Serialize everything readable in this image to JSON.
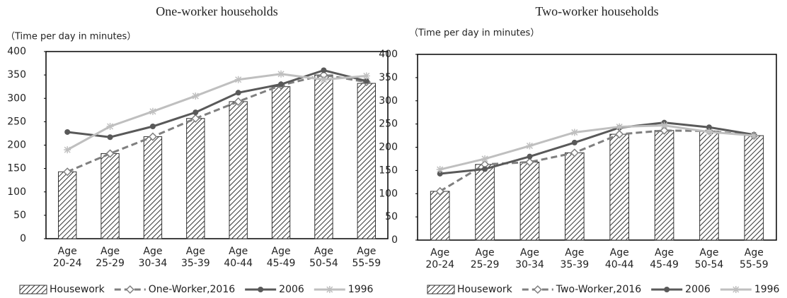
{
  "chart_data": [
    {
      "type": "bar_line",
      "title": "One-worker households",
      "y_label": "（Time per day in minutes）",
      "categories": [
        "Age\n20-24",
        "Age\n25-29",
        "Age\n30-34",
        "Age\n35-39",
        "Age\n40-44",
        "Age\n45-49",
        "Age\n50-54",
        "Age\n55-59"
      ],
      "ylim": [
        0,
        400
      ],
      "yticks": [
        0,
        50,
        100,
        150,
        200,
        250,
        300,
        350,
        400
      ],
      "series": [
        {
          "name": "Housework",
          "type": "bar",
          "color": "#333333",
          "values": [
            143,
            182,
            218,
            257,
            293,
            325,
            350,
            332
          ]
        },
        {
          "name": "One-Worker,2016",
          "type": "line",
          "style": "dashed",
          "marker": "diamond",
          "color": "#7f7f7f",
          "values": [
            143,
            182,
            218,
            257,
            293,
            328,
            350,
            335
          ]
        },
        {
          "name": "2006",
          "type": "line",
          "style": "solid",
          "marker": "circle",
          "color": "#595959",
          "values": [
            228,
            217,
            240,
            270,
            312,
            330,
            360,
            337
          ]
        },
        {
          "name": "1996",
          "type": "line",
          "style": "solid",
          "marker": "star",
          "color": "#bfbfbf",
          "values": [
            190,
            240,
            272,
            305,
            340,
            352,
            340,
            348
          ]
        }
      ]
    },
    {
      "type": "bar_line",
      "title": "Two-worker households",
      "y_label": "（Time per day in minutes）",
      "categories": [
        "Age\n20-24",
        "Age\n25-29",
        "Age\n30-34",
        "Age\n35-39",
        "Age\n40-44",
        "Age\n45-49",
        "Age\n50-54",
        "Age\n55-59"
      ],
      "ylim": [
        0,
        400
      ],
      "yticks": [
        0,
        50,
        100,
        150,
        200,
        250,
        300,
        350,
        400
      ],
      "series": [
        {
          "name": "Housework",
          "type": "bar",
          "color": "#333333",
          "values": [
            105,
            163,
            168,
            188,
            228,
            236,
            235,
            225
          ]
        },
        {
          "name": "Two-Worker,2016",
          "type": "line",
          "style": "dashed",
          "marker": "diamond",
          "color": "#7f7f7f",
          "values": [
            105,
            163,
            168,
            188,
            228,
            236,
            235,
            225
          ]
        },
        {
          "name": "2006",
          "type": "line",
          "style": "solid",
          "marker": "circle",
          "color": "#595959",
          "values": [
            143,
            153,
            180,
            210,
            242,
            253,
            243,
            227
          ]
        },
        {
          "name": "1996",
          "type": "line",
          "style": "solid",
          "marker": "star",
          "color": "#bfbfbf",
          "values": [
            152,
            175,
            203,
            232,
            244,
            247,
            233,
            225
          ]
        }
      ]
    }
  ]
}
